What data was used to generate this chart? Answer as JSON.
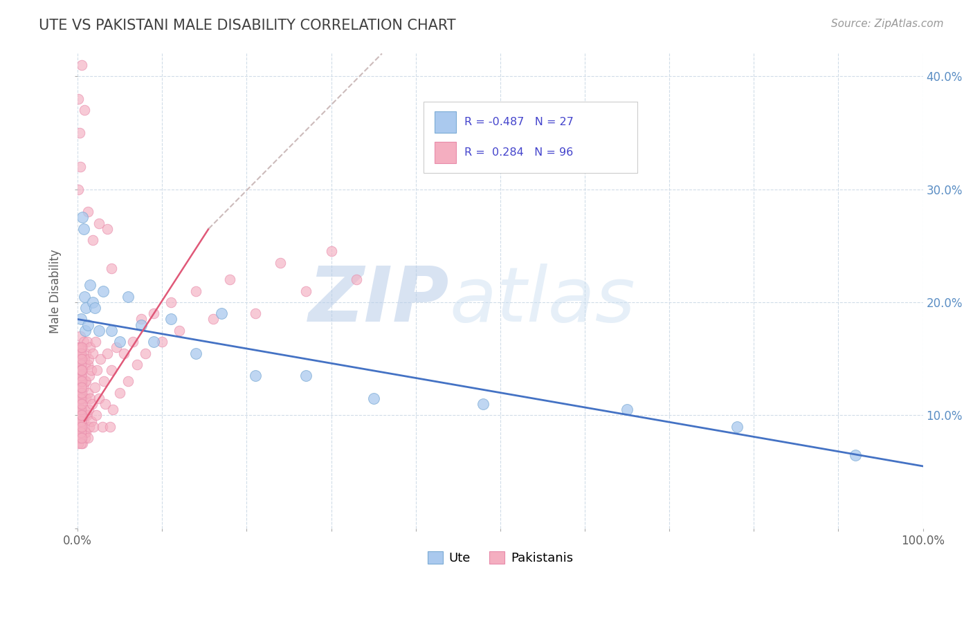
{
  "title": "UTE VS PAKISTANI MALE DISABILITY CORRELATION CHART",
  "source": "Source: ZipAtlas.com",
  "ylabel": "Male Disability",
  "xlim": [
    0,
    1.0
  ],
  "ylim": [
    0,
    0.42
  ],
  "xticks": [
    0.0,
    0.1,
    0.2,
    0.3,
    0.4,
    0.5,
    0.6,
    0.7,
    0.8,
    0.9,
    1.0
  ],
  "xtick_labels_show": [
    "0.0%",
    "",
    "",
    "",
    "",
    "",
    "",
    "",
    "",
    "",
    "100.0%"
  ],
  "yticks": [
    0.0,
    0.1,
    0.2,
    0.3,
    0.4
  ],
  "ytick_labels": [
    "",
    "10.0%",
    "20.0%",
    "30.0%",
    "40.0%"
  ],
  "legend_labels": [
    "Ute",
    "Pakistanis"
  ],
  "ute_color": "#aac9ee",
  "pak_color": "#f4aec0",
  "ute_edge": "#7aaad4",
  "pak_edge": "#e88aaa",
  "ute_R": -0.487,
  "ute_N": 27,
  "pak_R": 0.284,
  "pak_N": 96,
  "ute_line_color": "#4472c4",
  "pak_line_solid_color": "#e05878",
  "pak_line_dash_color": "#ccbbbb",
  "watermark_ZIP": "ZIP",
  "watermark_atlas": "atlas",
  "background_color": "#ffffff",
  "title_color": "#404040",
  "grid_color": "#d0dce8",
  "ute_scatter_x": [
    0.004,
    0.006,
    0.007,
    0.008,
    0.009,
    0.01,
    0.012,
    0.015,
    0.018,
    0.02,
    0.025,
    0.03,
    0.04,
    0.05,
    0.06,
    0.075,
    0.09,
    0.11,
    0.14,
    0.17,
    0.21,
    0.27,
    0.35,
    0.48,
    0.65,
    0.78,
    0.92
  ],
  "ute_scatter_y": [
    0.185,
    0.275,
    0.265,
    0.205,
    0.175,
    0.195,
    0.18,
    0.215,
    0.2,
    0.195,
    0.175,
    0.21,
    0.175,
    0.165,
    0.205,
    0.18,
    0.165,
    0.185,
    0.155,
    0.19,
    0.135,
    0.135,
    0.115,
    0.11,
    0.105,
    0.09,
    0.065
  ],
  "pak_scatter_x": [
    0.001,
    0.001,
    0.001,
    0.002,
    0.002,
    0.002,
    0.003,
    0.003,
    0.003,
    0.003,
    0.004,
    0.004,
    0.004,
    0.004,
    0.005,
    0.005,
    0.005,
    0.005,
    0.006,
    0.006,
    0.006,
    0.006,
    0.007,
    0.007,
    0.007,
    0.008,
    0.008,
    0.008,
    0.009,
    0.009,
    0.009,
    0.009,
    0.01,
    0.01,
    0.01,
    0.01,
    0.011,
    0.011,
    0.012,
    0.012,
    0.012,
    0.013,
    0.013,
    0.014,
    0.014,
    0.015,
    0.015,
    0.016,
    0.016,
    0.017,
    0.018,
    0.019,
    0.02,
    0.021,
    0.022,
    0.023,
    0.025,
    0.027,
    0.029,
    0.031,
    0.033,
    0.035,
    0.038,
    0.04,
    0.042,
    0.046,
    0.05,
    0.055,
    0.06,
    0.065,
    0.07,
    0.075,
    0.08,
    0.09,
    0.1,
    0.11,
    0.12,
    0.14,
    0.16,
    0.18,
    0.21,
    0.24,
    0.27,
    0.3,
    0.33,
    0.035,
    0.04,
    0.025,
    0.018,
    0.012,
    0.008,
    0.005,
    0.003,
    0.002,
    0.001,
    0.001
  ],
  "pak_scatter_y": [
    0.115,
    0.095,
    0.13,
    0.1,
    0.145,
    0.085,
    0.12,
    0.17,
    0.095,
    0.14,
    0.105,
    0.155,
    0.085,
    0.13,
    0.09,
    0.135,
    0.1,
    0.16,
    0.115,
    0.075,
    0.14,
    0.09,
    0.125,
    0.165,
    0.095,
    0.105,
    0.15,
    0.085,
    0.13,
    0.1,
    0.145,
    0.08,
    0.115,
    0.155,
    0.085,
    0.13,
    0.1,
    0.165,
    0.12,
    0.08,
    0.145,
    0.105,
    0.15,
    0.09,
    0.135,
    0.115,
    0.16,
    0.095,
    0.14,
    0.11,
    0.155,
    0.09,
    0.125,
    0.165,
    0.1,
    0.14,
    0.115,
    0.15,
    0.09,
    0.13,
    0.11,
    0.155,
    0.09,
    0.14,
    0.105,
    0.16,
    0.12,
    0.155,
    0.13,
    0.165,
    0.145,
    0.185,
    0.155,
    0.19,
    0.165,
    0.2,
    0.175,
    0.21,
    0.185,
    0.22,
    0.19,
    0.235,
    0.21,
    0.245,
    0.22,
    0.265,
    0.23,
    0.27,
    0.255,
    0.28,
    0.37,
    0.41,
    0.32,
    0.35,
    0.38,
    0.3
  ],
  "pak_cluster_x": [
    0.001,
    0.001,
    0.001,
    0.001,
    0.001,
    0.001,
    0.001,
    0.001,
    0.001,
    0.001,
    0.001,
    0.001,
    0.001,
    0.001,
    0.001,
    0.001,
    0.001,
    0.001,
    0.001,
    0.001,
    0.002,
    0.002,
    0.002,
    0.002,
    0.002,
    0.002,
    0.002,
    0.002,
    0.002,
    0.002,
    0.003,
    0.003,
    0.003,
    0.003,
    0.003,
    0.003,
    0.003,
    0.003,
    0.003,
    0.003,
    0.004,
    0.004,
    0.004,
    0.004,
    0.004,
    0.004,
    0.004,
    0.004,
    0.004,
    0.004,
    0.005,
    0.005,
    0.005,
    0.005,
    0.005,
    0.005,
    0.005,
    0.005,
    0.005,
    0.005
  ],
  "pak_cluster_y": [
    0.13,
    0.11,
    0.15,
    0.09,
    0.12,
    0.14,
    0.1,
    0.16,
    0.08,
    0.13,
    0.115,
    0.095,
    0.135,
    0.155,
    0.085,
    0.125,
    0.105,
    0.145,
    0.075,
    0.16,
    0.12,
    0.1,
    0.14,
    0.08,
    0.13,
    0.15,
    0.09,
    0.115,
    0.155,
    0.105,
    0.11,
    0.13,
    0.09,
    0.15,
    0.12,
    0.14,
    0.08,
    0.16,
    0.1,
    0.125,
    0.105,
    0.125,
    0.085,
    0.145,
    0.115,
    0.135,
    0.095,
    0.155,
    0.075,
    0.14,
    0.09,
    0.13,
    0.1,
    0.15,
    0.12,
    0.14,
    0.08,
    0.16,
    0.11,
    0.125
  ]
}
